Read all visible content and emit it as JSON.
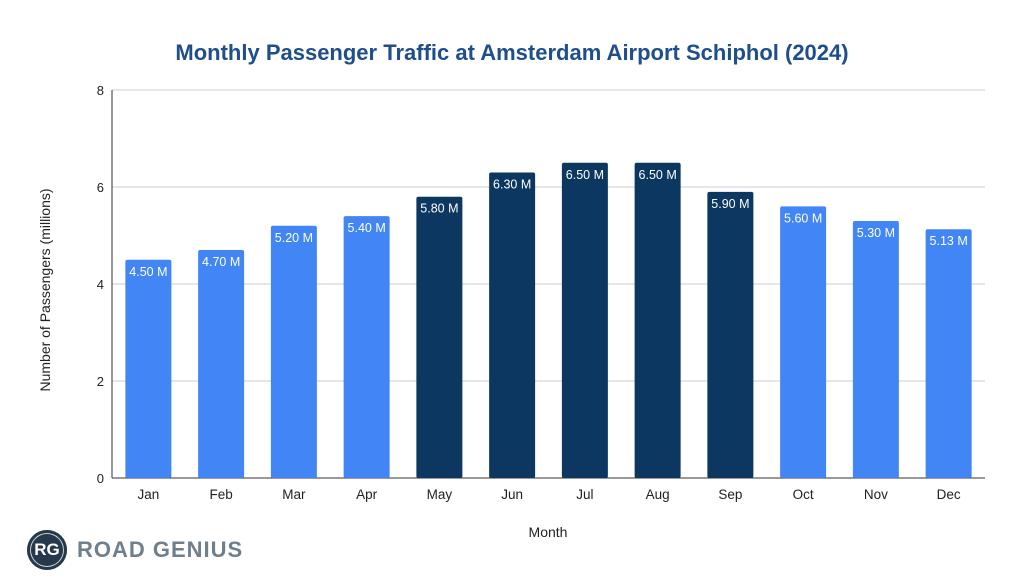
{
  "chart_data": {
    "type": "bar",
    "title": "Monthly Passenger Traffic at Amsterdam Airport Schiphol (2024)",
    "xlabel": "Month",
    "ylabel": "Number of Passengers (millions)",
    "ylim": [
      0,
      8
    ],
    "yticks": [
      0,
      2,
      4,
      6,
      8
    ],
    "grid": true,
    "categories": [
      "Jan",
      "Feb",
      "Mar",
      "Apr",
      "May",
      "Jun",
      "Jul",
      "Aug",
      "Sep",
      "Oct",
      "Nov",
      "Dec"
    ],
    "values": [
      4.5,
      4.7,
      5.2,
      5.4,
      5.8,
      6.3,
      6.5,
      6.5,
      5.9,
      5.6,
      5.3,
      5.13
    ],
    "labels": [
      "4.50 M",
      "4.70 M",
      "5.20 M",
      "5.40 M",
      "5.80 M",
      "6.30 M",
      "6.50 M",
      "6.50 M",
      "5.90 M",
      "5.60 M",
      "5.30 M",
      "5.13 M"
    ],
    "highlight": [
      false,
      false,
      false,
      false,
      true,
      true,
      true,
      true,
      true,
      false,
      false,
      false
    ],
    "colors": {
      "normal": "#4285f4",
      "highlight": "#0b3760",
      "title": "#1f4e8c"
    }
  },
  "logo": {
    "initials": "RG",
    "name": "ROAD GENIUS"
  }
}
